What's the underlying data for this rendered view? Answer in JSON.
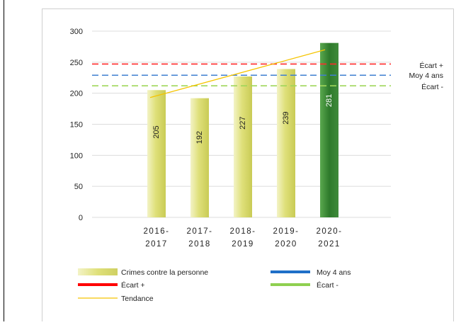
{
  "chart_data": {
    "type": "bar",
    "categories": [
      [
        "2016-",
        "2017"
      ],
      [
        "2017-",
        "2018"
      ],
      [
        "2018-",
        "2019"
      ],
      [
        "2019-",
        "2020"
      ],
      [
        "2020-",
        "2021"
      ]
    ],
    "series": [
      {
        "name": "Crimes contre la personne",
        "values": [
          205,
          192,
          227,
          239,
          281
        ],
        "color": "#dfe07a",
        "highlight_color": "#3f8a3a",
        "highlight_index": 4
      }
    ],
    "reference_lines": [
      {
        "name": "Écart +",
        "value": 247,
        "color": "#ff2a2a",
        "style": "dashed"
      },
      {
        "name": "Moy 4 ans",
        "value": 229,
        "color": "#3f7fd0",
        "style": "dashed"
      },
      {
        "name": "Écart -",
        "value": 212,
        "color": "#9fd65a",
        "style": "dashed"
      }
    ],
    "reference_labels": [
      "Écart +",
      "Moy 4 ans",
      "Écart -"
    ],
    "trend": {
      "name": "Tendance",
      "start": 193,
      "end": 270,
      "color": "#f5c400"
    },
    "ylim": [
      0,
      300
    ],
    "yticks": [
      0,
      50,
      100,
      150,
      200,
      250,
      300
    ],
    "grid": true,
    "title": "",
    "xlabel": "",
    "ylabel": "",
    "legend": {
      "placement": "bottom",
      "items": [
        {
          "label": "Crimes contre la personne",
          "type": "bar",
          "color": "#dfe07a"
        },
        {
          "label": "Moy 4 ans",
          "type": "line",
          "color": "#1f6fc8"
        },
        {
          "label": "Écart +",
          "type": "line",
          "color": "#ff0000"
        },
        {
          "label": "Écart -",
          "type": "line",
          "color": "#8fd050"
        },
        {
          "label": "Tendance",
          "type": "thinline",
          "color": "#f5c400"
        }
      ]
    }
  }
}
